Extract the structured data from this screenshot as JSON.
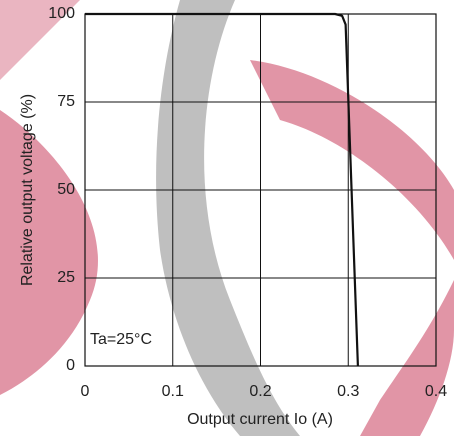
{
  "chart_data": {
    "type": "line",
    "x_label": "Output current Io (A)",
    "y_label": "Relative output voltage (%)",
    "annotation": "Ta=25°C",
    "series": [
      {
        "name": "Output voltage",
        "color": "#111111",
        "x": [
          0,
          0.285,
          0.293,
          0.297,
          0.311
        ],
        "values": [
          100,
          100,
          99.5,
          97,
          0
        ]
      }
    ],
    "xlim": [
      0,
      0.4
    ],
    "xticks": [
      0,
      0.1,
      0.2,
      0.3,
      0.4
    ],
    "ylim": [
      0,
      100
    ],
    "yticks": [
      0,
      25,
      50,
      75,
      100
    ],
    "grid": true
  }
}
